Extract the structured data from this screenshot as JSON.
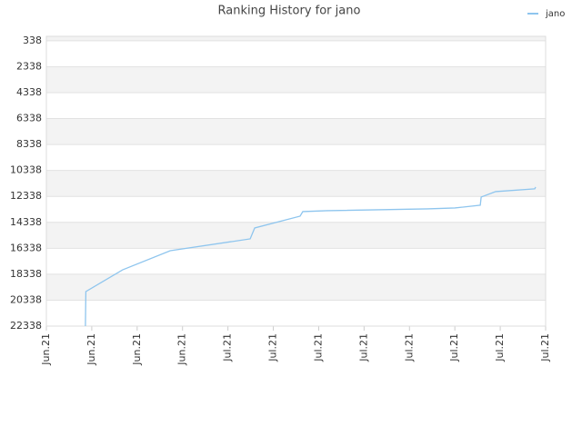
{
  "chart_data": {
    "type": "line",
    "title": "Ranking History for jano",
    "x": [
      0.86,
      0.87,
      1.68,
      2.73,
      4.49,
      4.59,
      5.59,
      5.65,
      6.19,
      8.4,
      9.0,
      9.56,
      9.58,
      9.9,
      10.76,
      10.78
    ],
    "series": [
      {
        "name": "jano",
        "color": "#8ec5ee",
        "values": [
          22338,
          19677,
          18000,
          16528,
          15613,
          14772,
          13861,
          13511,
          13441,
          13300,
          13230,
          13020,
          12389,
          11969,
          11758,
          11618
        ]
      }
    ],
    "xlim": [
      0,
      11
    ],
    "xticks": [
      {
        "value": 0,
        "label": "Jun.21"
      },
      {
        "value": 1,
        "label": "Jun.21"
      },
      {
        "value": 2,
        "label": "Jun.21"
      },
      {
        "value": 3,
        "label": "Jun.21"
      },
      {
        "value": 4,
        "label": "Jul.21"
      },
      {
        "value": 5,
        "label": "Jul.21"
      },
      {
        "value": 6,
        "label": "Jul.21"
      },
      {
        "value": 7,
        "label": "Jul.21"
      },
      {
        "value": 8,
        "label": "Jul.21"
      },
      {
        "value": 9,
        "label": "Jul.21"
      },
      {
        "value": 10,
        "label": "Jul.21"
      },
      {
        "value": 11,
        "label": "Jul.21"
      }
    ],
    "ylim": [
      22338,
      0
    ],
    "yticks": [
      338,
      2338,
      4338,
      6338,
      8338,
      10338,
      12338,
      14338,
      16338,
      18338,
      20338,
      22338
    ],
    "grid": true,
    "legend": "top-right"
  }
}
